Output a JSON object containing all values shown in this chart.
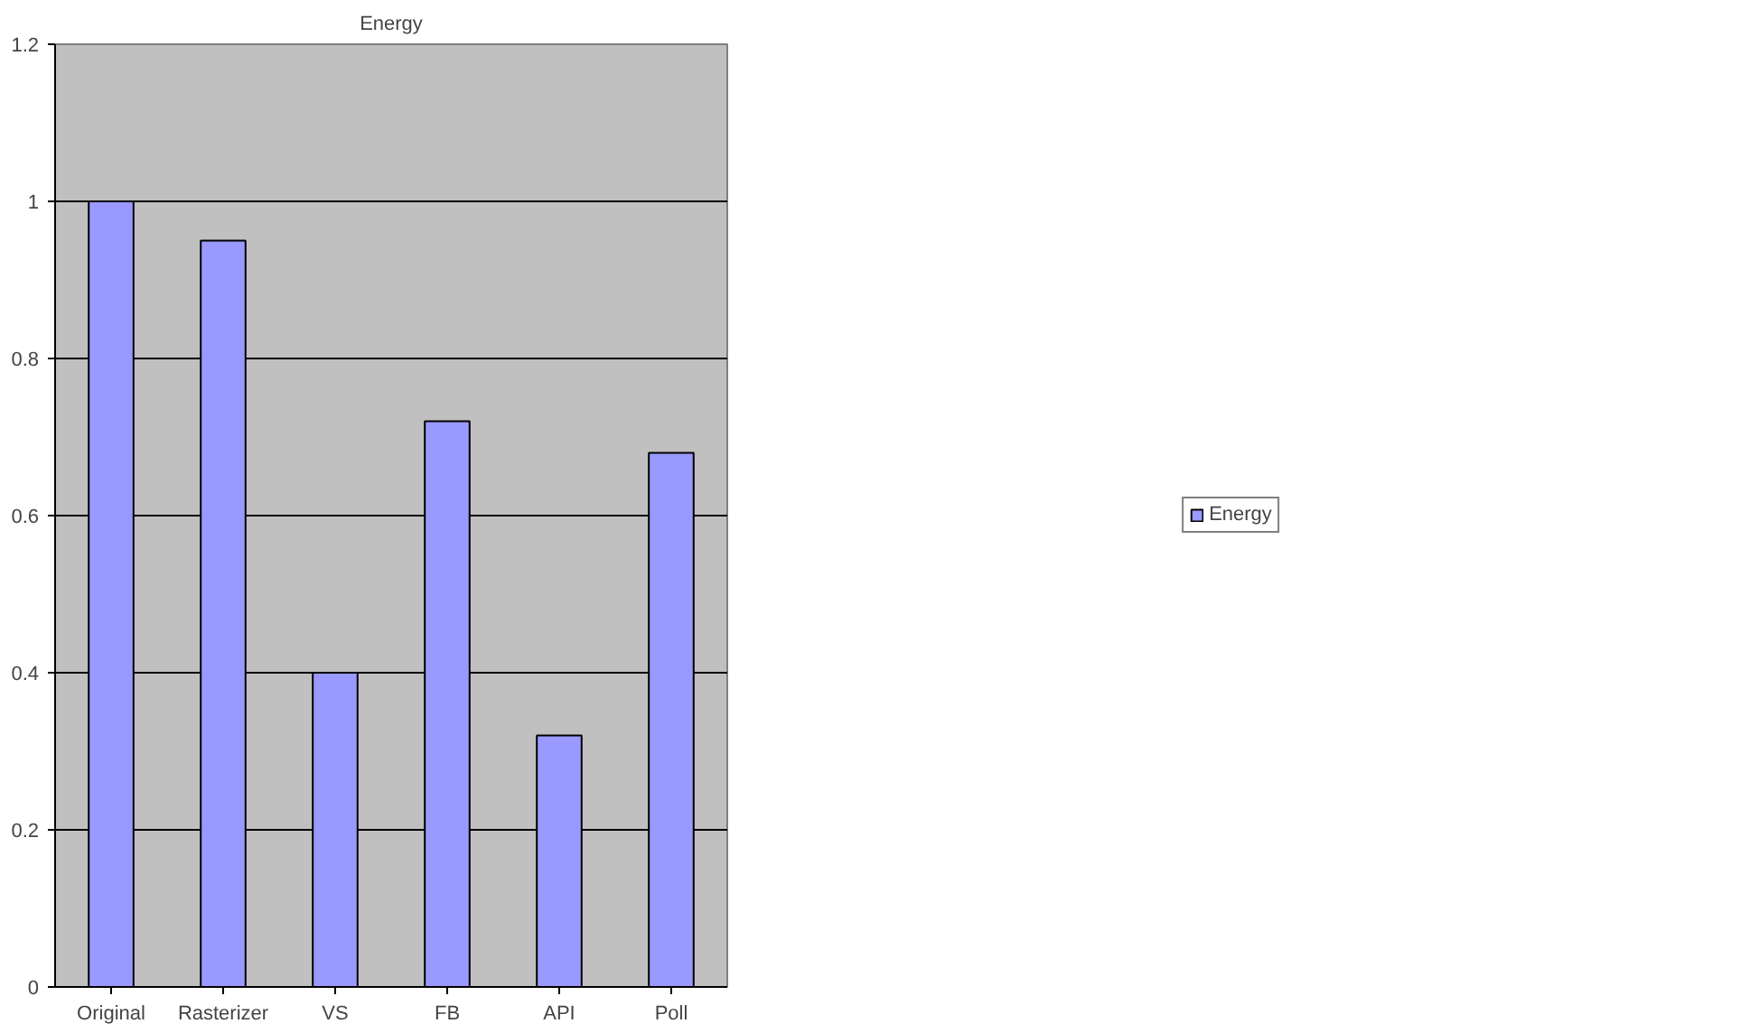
{
  "chart_data": {
    "type": "bar",
    "title": "Energy",
    "categories": [
      "Original",
      "Rasterizer",
      "VS",
      "FB",
      "API",
      "Poll"
    ],
    "series": [
      {
        "name": "Energy",
        "color": "#9999ff",
        "values": [
          1.0,
          0.95,
          0.4,
          0.72,
          0.32,
          0.68
        ]
      }
    ],
    "ylim": [
      0,
      1.2
    ],
    "yticks": [
      0,
      0.2,
      0.4,
      0.6,
      0.8,
      1,
      1.2
    ],
    "grid": "y",
    "legend": "right"
  }
}
